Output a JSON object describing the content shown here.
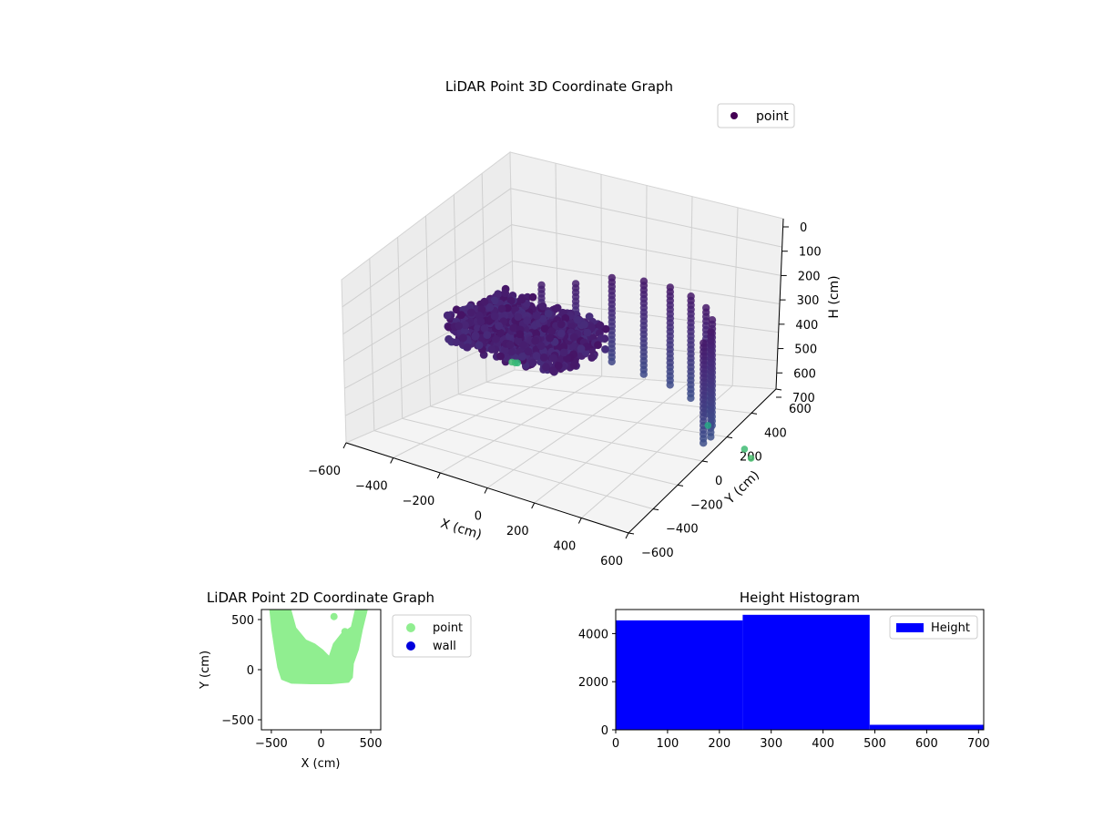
{
  "chart_data": [
    {
      "type": "scatter",
      "projection": "3d",
      "title": "LiDAR Point 3D Coordinate Graph",
      "xlabel": "X (cm)",
      "ylabel": "Y (cm)",
      "zlabel": "H (cm)",
      "xlim": [
        -600,
        600
      ],
      "ylim": [
        -600,
        600
      ],
      "zlim": [
        0,
        700
      ],
      "z_inverted": true,
      "xticks": [
        "−600",
        "−400",
        "−200",
        "0",
        "200",
        "400",
        "600"
      ],
      "yticks": [
        "−600",
        "−400",
        "−200",
        "0",
        "200",
        "400",
        "600"
      ],
      "zticks": [
        "0",
        "100",
        "200",
        "300",
        "400",
        "500",
        "600",
        "700"
      ],
      "colormap": "viridis",
      "legend": {
        "label": "point",
        "color": "#440154",
        "placement": "top-right"
      },
      "series": [
        {
          "name": "point",
          "blob": {
            "x": [
              -420,
              40
            ],
            "y": [
              -200,
              200
            ],
            "h": [
              200,
              330
            ]
          },
          "ring_columns": [
            {
              "x": -80,
              "y": 420,
              "h": [
                120,
                470
              ]
            },
            {
              "x": 20,
              "y": 480,
              "h": [
                120,
                500
              ]
            },
            {
              "x": 120,
              "y": 500,
              "h": [
                120,
                520
              ]
            },
            {
              "x": 220,
              "y": 480,
              "h": [
                120,
                540
              ]
            },
            {
              "x": 320,
              "y": 420,
              "h": [
                120,
                560
              ]
            },
            {
              "x": 400,
              "y": 330,
              "h": [
                120,
                560
              ]
            },
            {
              "x": 460,
              "y": 220,
              "h": [
                120,
                560
              ]
            },
            {
              "x": 500,
              "y": 100,
              "h": [
                120,
                540
              ]
            },
            {
              "x": -180,
              "y": 330,
              "h": [
                150,
                440
              ]
            },
            {
              "x": -260,
              "y": 220,
              "h": [
                150,
                420
              ]
            }
          ],
          "outliers": [
            {
              "x": -540,
              "y": 480,
              "h": 620
            },
            {
              "x": -520,
              "y": 470,
              "h": 615
            },
            {
              "x": -480,
              "y": 420,
              "h": 590
            },
            {
              "x": 520,
              "y": 360,
              "h": 620
            },
            {
              "x": 560,
              "y": 340,
              "h": 640
            },
            {
              "x": 460,
              "y": 200,
              "h": 500
            }
          ]
        }
      ]
    },
    {
      "type": "scatter",
      "title": "LiDAR Point 2D Coordinate Graph",
      "xlabel": "X (cm)",
      "ylabel": "Y (cm)",
      "xlim": [
        -600,
        600
      ],
      "ylim": [
        -600,
        600
      ],
      "xticks": [
        "−500",
        "0",
        "500"
      ],
      "yticks": [
        "−500",
        "0",
        "500"
      ],
      "legend": {
        "placement": "outside-right",
        "entries": [
          {
            "label": "point",
            "color": "#90ee90"
          },
          {
            "label": "wall",
            "color": "#0000dd"
          }
        ]
      },
      "series": [
        {
          "name": "point",
          "color": "#90ee90",
          "region": {
            "outer_left": [
              [
                -520,
                600
              ],
              [
                -500,
                400
              ],
              [
                -470,
                200
              ],
              [
                -440,
                20
              ],
              [
                -400,
                -100
              ],
              [
                -300,
                -140
              ],
              [
                -100,
                -145
              ],
              [
                100,
                -145
              ],
              [
                280,
                -130
              ],
              [
                320,
                -80
              ],
              [
                330,
                60
              ],
              [
                380,
                200
              ],
              [
                420,
                400
              ],
              [
                470,
                600
              ]
            ],
            "inner_hole": [
              [
                -300,
                600
              ],
              [
                -250,
                420
              ],
              [
                -150,
                300
              ],
              [
                -60,
                260
              ],
              [
                20,
                200
              ],
              [
                80,
                140
              ],
              [
                120,
                260
              ],
              [
                200,
                360
              ],
              [
                300,
                430
              ],
              [
                340,
                600
              ]
            ]
          }
        },
        {
          "name": "wall",
          "color": "#0000dd",
          "points": []
        }
      ]
    },
    {
      "type": "bar",
      "title": "Height Histogram",
      "xlim": [
        0,
        710
      ],
      "ylim": [
        0,
        5000
      ],
      "xticks": [
        "0",
        "100",
        "200",
        "300",
        "400",
        "500",
        "600",
        "700"
      ],
      "yticks": [
        "0",
        "2000",
        "4000"
      ],
      "legend": {
        "label": "Height",
        "color": "#0000ff",
        "placement": "top-right"
      },
      "bins": [
        {
          "from": 0,
          "to": 245,
          "count": 4550
        },
        {
          "from": 245,
          "to": 490,
          "count": 4780
        },
        {
          "from": 490,
          "to": 710,
          "count": 210
        }
      ]
    }
  ]
}
